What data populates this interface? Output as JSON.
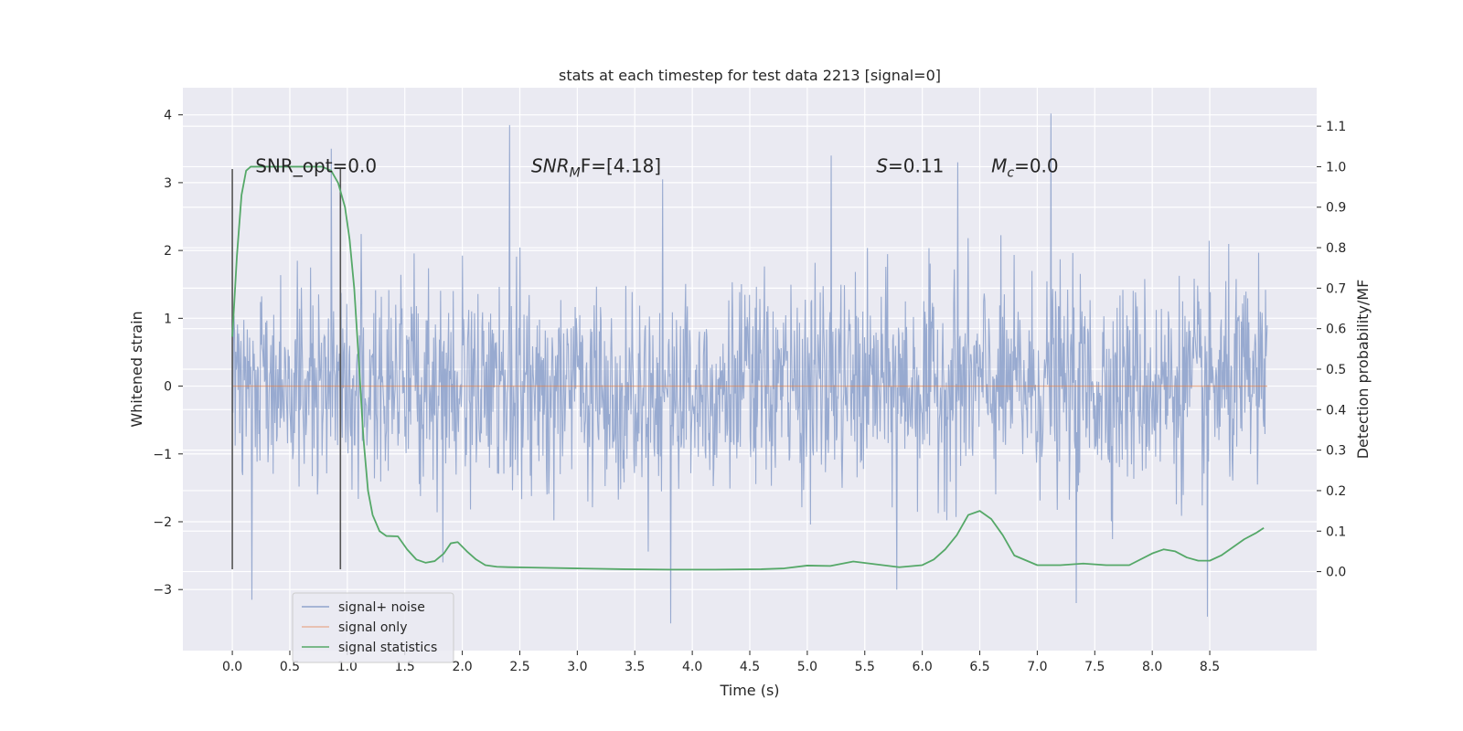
{
  "chart_data": {
    "type": "line",
    "title": "stats at each timestep for test data 2213 [signal=0]",
    "xlabel": "Time (s)",
    "ylabel": "Whitened strain",
    "y2label": "Detection probability/MF",
    "xlim": [
      -0.43,
      9.43
    ],
    "ylim": [
      -3.9,
      4.4
    ],
    "y2lim": [
      -0.195,
      1.195
    ],
    "xticks": [
      "0.0",
      "0.5",
      "1.0",
      "1.5",
      "2.0",
      "2.5",
      "3.0",
      "3.5",
      "4.0",
      "4.5",
      "5.0",
      "5.5",
      "6.0",
      "6.5",
      "7.0",
      "7.5",
      "8.0",
      "8.5"
    ],
    "xtick_values": [
      0,
      0.5,
      1,
      1.5,
      2,
      2.5,
      3,
      3.5,
      4,
      4.5,
      5,
      5.5,
      6,
      6.5,
      7,
      7.5,
      8,
      8.5
    ],
    "yticks": [
      "−3",
      "−2",
      "−1",
      "0",
      "1",
      "2",
      "3",
      "4"
    ],
    "ytick_values": [
      -3,
      -2,
      -1,
      0,
      1,
      2,
      3,
      4
    ],
    "y2ticks": [
      "0.0",
      "0.1",
      "0.2",
      "0.3",
      "0.4",
      "0.5",
      "0.6",
      "0.7",
      "0.8",
      "0.9",
      "1.0",
      "1.1"
    ],
    "y2tick_values": [
      0,
      0.1,
      0.2,
      0.3,
      0.4,
      0.5,
      0.6,
      0.7,
      0.8,
      0.9,
      1.0,
      1.1
    ],
    "grid": true,
    "legend_position": "lower-left",
    "legend": [
      "signal+ noise",
      "signal only",
      "signal statistics"
    ],
    "series": [
      {
        "name": "signal+ noise",
        "color": "#8fa3cc",
        "time_range": [
          0,
          9.0
        ],
        "samples": 1800,
        "std": 0.75,
        "extremes": [
          {
            "x": 2.41,
            "y": 3.85
          },
          {
            "x": 7.12,
            "y": 4.02
          },
          {
            "x": 0.86,
            "y": 3.5
          },
          {
            "x": 3.74,
            "y": 3.05
          },
          {
            "x": 6.31,
            "y": 3.3
          },
          {
            "x": 5.21,
            "y": 3.4
          },
          {
            "x": 0.17,
            "y": -3.15
          },
          {
            "x": 3.81,
            "y": -3.5
          },
          {
            "x": 8.48,
            "y": -3.4
          },
          {
            "x": 5.78,
            "y": -3.0
          },
          {
            "x": 7.34,
            "y": -3.2
          }
        ]
      },
      {
        "name": "signal only",
        "color": "#dd8452",
        "x": [
          0,
          9.0
        ],
        "y": [
          0,
          0
        ]
      },
      {
        "name": "signal statistics",
        "color": "#55a868",
        "axis": "right",
        "x": [
          0.0,
          0.04,
          0.08,
          0.12,
          0.16,
          0.2,
          0.3,
          0.4,
          0.5,
          0.6,
          0.7,
          0.78,
          0.86,
          0.92,
          0.98,
          1.02,
          1.06,
          1.1,
          1.14,
          1.18,
          1.22,
          1.28,
          1.34,
          1.44,
          1.52,
          1.6,
          1.68,
          1.76,
          1.84,
          1.9,
          1.96,
          2.04,
          2.12,
          2.2,
          2.3,
          2.4,
          2.6,
          3.0,
          3.4,
          3.8,
          4.2,
          4.6,
          4.8,
          5.0,
          5.2,
          5.4,
          5.6,
          5.8,
          6.0,
          6.1,
          6.2,
          6.3,
          6.4,
          6.5,
          6.6,
          6.7,
          6.8,
          7.0,
          7.2,
          7.4,
          7.6,
          7.8,
          8.0,
          8.1,
          8.2,
          8.3,
          8.4,
          8.5,
          8.6,
          8.7,
          8.8,
          8.9,
          8.97
        ],
        "y": [
          0.58,
          0.78,
          0.93,
          0.99,
          1.0,
          1.0,
          1.0,
          1.0,
          1.0,
          1.0,
          1.0,
          1.0,
          0.99,
          0.96,
          0.9,
          0.82,
          0.7,
          0.52,
          0.33,
          0.2,
          0.14,
          0.1,
          0.088,
          0.087,
          0.055,
          0.03,
          0.022,
          0.026,
          0.045,
          0.07,
          0.073,
          0.05,
          0.03,
          0.016,
          0.012,
          0.011,
          0.01,
          0.008,
          0.006,
          0.005,
          0.005,
          0.006,
          0.008,
          0.015,
          0.014,
          0.025,
          0.018,
          0.011,
          0.016,
          0.03,
          0.055,
          0.09,
          0.14,
          0.15,
          0.13,
          0.09,
          0.04,
          0.016,
          0.016,
          0.02,
          0.016,
          0.016,
          0.045,
          0.055,
          0.05,
          0.035,
          0.027,
          0.027,
          0.04,
          0.06,
          0.08,
          0.095,
          0.108
        ]
      }
    ],
    "vlines": [
      {
        "x": 0.0,
        "ymin": -2.7,
        "ymax": 3.2,
        "color": "#555555"
      },
      {
        "x": 0.94,
        "ymin": -2.7,
        "ymax": 3.2,
        "color": "#555555"
      }
    ],
    "annotations": [
      {
        "x": 0.2,
        "y": 3.25,
        "text": "SNR_opt=0.0",
        "style": "plain"
      },
      {
        "x": 2.6,
        "y": 3.25,
        "main": "SNR",
        "sub": "M",
        "rest": "F=[4.18]",
        "style": "italic"
      },
      {
        "x": 5.6,
        "y": 3.25,
        "main": "S",
        "rest": "=0.11",
        "style": "italic"
      },
      {
        "x": 6.6,
        "y": 3.25,
        "main": "M",
        "sub": "c",
        "rest": "=0.0",
        "style": "italic"
      }
    ]
  }
}
